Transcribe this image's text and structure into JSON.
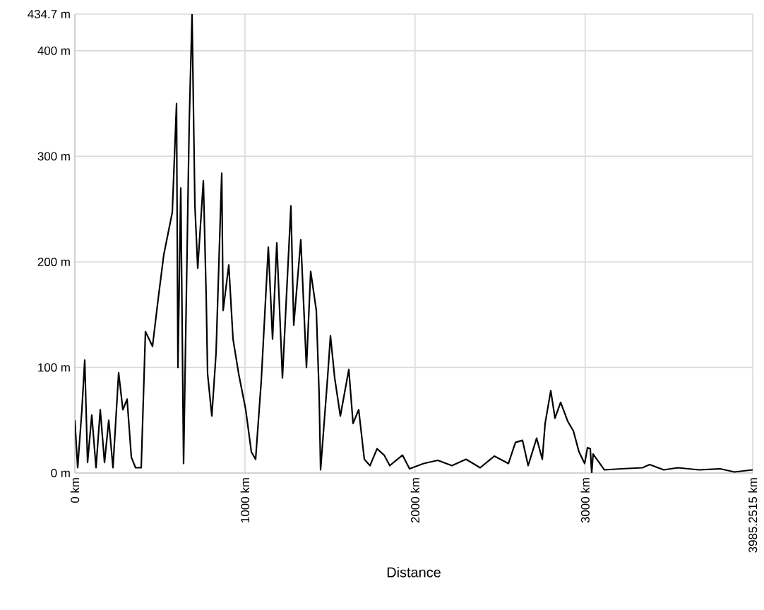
{
  "chart_data": {
    "type": "line",
    "xlabel": "Distance",
    "grid": true,
    "marker": "none",
    "line_style": "solid",
    "xlim": [
      0,
      3985.2515
    ],
    "ylim": [
      0,
      434.7
    ],
    "xticks": [
      {
        "value": 0,
        "label": "0 km"
      },
      {
        "value": 1000,
        "label": "1000 km"
      },
      {
        "value": 2000,
        "label": "2000 km"
      },
      {
        "value": 3000,
        "label": "3000 km"
      },
      {
        "value": 3985.2515,
        "label": "3985.2515 km"
      }
    ],
    "yticks": [
      {
        "value": 0,
        "label": "0 m"
      },
      {
        "value": 100,
        "label": "100 m"
      },
      {
        "value": 200,
        "label": "200 m"
      },
      {
        "value": 300,
        "label": "300 m"
      },
      {
        "value": 400,
        "label": "400 m"
      },
      {
        "value": 434.7,
        "label": "434.7 m"
      }
    ],
    "x": [
      0,
      16.6,
      41.5,
      58.1,
      74.7,
      99.6,
      124.5,
      149.4,
      174.4,
      199.3,
      224.2,
      257.4,
      282.3,
      307.2,
      332.1,
      357.0,
      390.2,
      415.1,
      456.6,
      489.9,
      523.1,
      548.0,
      572.9,
      597.8,
      606.1,
      622.7,
      639.3,
      672.5,
      689.1,
      705.7,
      722.4,
      755.6,
      772.2,
      780.4,
      805.4,
      830.3,
      863.5,
      871.8,
      905.0,
      929.9,
      963.1,
      1004.6,
      1037.8,
      1062.7,
      1095.9,
      1137.5,
      1162.4,
      1187.3,
      1220.5,
      1270.3,
      1286.9,
      1328.4,
      1361.6,
      1386.5,
      1419.7,
      1436.3,
      1444.7,
      1486.2,
      1502.8,
      1527.7,
      1560.9,
      1610.7,
      1635.6,
      1668.8,
      1702.0,
      1735.2,
      1776.8,
      1818.3,
      1851.5,
      1926.2,
      1967.7,
      2050.7,
      2133.8,
      2216.8,
      2299.8,
      2382.8,
      2465.9,
      2548.9,
      2590.4,
      2631.9,
      2665.1,
      2714.9,
      2748.2,
      2764.8,
      2798.0,
      2822.9,
      2856.1,
      2897.6,
      2930.8,
      2964.0,
      2997.2,
      3013.8,
      3030.4,
      3038.7,
      3047.0,
      3113.5,
      3213.1,
      3337.6,
      3379.2,
      3462.2,
      3545.2,
      3669.8,
      3794.3,
      3877.3,
      3985.2515
    ],
    "values": [
      50,
      5,
      60,
      107,
      10,
      55,
      5,
      60,
      10,
      50,
      5,
      95,
      60,
      70,
      15,
      5,
      5,
      134,
      120,
      165,
      207,
      227,
      247,
      350,
      100,
      270,
      9,
      332,
      434.7,
      254,
      194,
      277,
      167,
      94,
      54,
      114,
      284,
      154,
      197,
      127,
      94,
      60,
      20,
      13,
      87,
      214,
      127,
      218,
      90,
      253,
      140,
      221,
      100,
      191,
      154,
      74,
      3,
      91,
      130,
      90,
      54,
      98,
      47,
      60,
      13,
      7,
      23,
      17,
      7,
      17,
      4,
      9,
      12,
      7,
      13,
      5,
      16,
      9,
      29,
      31,
      7,
      33,
      13,
      47,
      78,
      52,
      67,
      49,
      40,
      20,
      9,
      24,
      23,
      0,
      18,
      3,
      4,
      5,
      8,
      3,
      5,
      3,
      4,
      1,
      3
    ]
  }
}
